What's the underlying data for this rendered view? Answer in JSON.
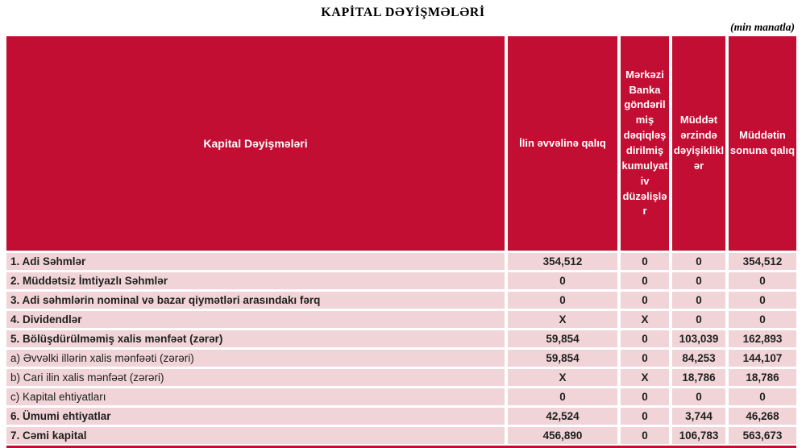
{
  "title": "KAPİTAL DƏYİŞMƏLƏRİ",
  "unit_note": "(min manatla)",
  "colors": {
    "header_red": "#C30E33",
    "row_pink": "#F0D4D7",
    "text_dark": "#1F1F1F"
  },
  "table": {
    "headers": [
      "Kapital Dəyişmələri",
      "İlin əvvəlinə qalıq",
      "Mərkəzi Banka göndərilmiş dəqiqləşdirilmiş kumulyativ düzəlişlər",
      "Müddət ərzində dəyişikliklər",
      "Müddətin sonuna qalıq"
    ],
    "rows": [
      {
        "label": "1. Adi Səhmlər",
        "values": [
          "354,512",
          "0",
          "0",
          "354,512"
        ]
      },
      {
        "label": "2. Müddətsiz İmtiyazlı Səhmlər",
        "values": [
          "0",
          "0",
          "0",
          "0"
        ]
      },
      {
        "label": "3. Adi səhmlərin nominal və bazar qiymətləri arasındakı fərq",
        "values": [
          "0",
          "0",
          "0",
          "0"
        ]
      },
      {
        "label": "4. Dividendlər",
        "values": [
          "X",
          "X",
          "0",
          "0"
        ]
      },
      {
        "label": "5. Bölüşdürülməmiş xalis mənfəət (zərər)",
        "values": [
          "59,854",
          "0",
          "103,039",
          "162,893"
        ]
      },
      {
        "label": "a) Əvvəlki illərin xalis mənfəəti (zərəri)",
        "values": [
          "59,854",
          "0",
          "84,253",
          "144,107"
        ]
      },
      {
        "label": "b) Cari ilin xalis mənfəət (zərəri)",
        "values": [
          "X",
          "X",
          "18,786",
          "18,786"
        ]
      },
      {
        "label": "c) Kapital ehtiyatları",
        "values": [
          "0",
          "0",
          "0",
          "0"
        ]
      },
      {
        "label": "6. Ümumi ehtiyatlar",
        "values": [
          "42,524",
          "0",
          "3,744",
          "46,268"
        ]
      },
      {
        "label": "7. Cəmi kapital",
        "values": [
          "456,890",
          "0",
          "106,783",
          "563,673"
        ]
      }
    ]
  }
}
